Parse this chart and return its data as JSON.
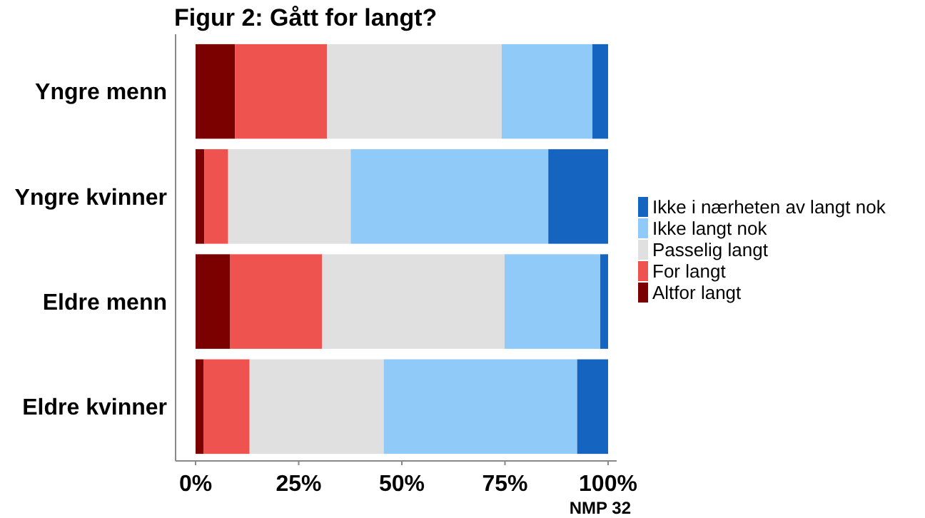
{
  "chart_data": {
    "type": "bar",
    "orientation": "horizontal",
    "stacked": true,
    "title": "Figur 2: Gått for langt?",
    "categories": [
      "Yngre menn",
      "Yngre kvinner",
      "Eldre menn",
      "Eldre kvinner"
    ],
    "series": [
      {
        "name": "Altfor langt",
        "color": "#7b0000",
        "values": [
          9.6,
          2.1,
          8.4,
          2.0
        ]
      },
      {
        "name": "For langt",
        "color": "#ef5350",
        "values": [
          22.3,
          5.8,
          22.3,
          11.1
        ]
      },
      {
        "name": "Passelig langt",
        "color": "#e0e0e0",
        "values": [
          42.3,
          29.7,
          44.2,
          32.5
        ]
      },
      {
        "name": "Ikke langt nok",
        "color": "#90caf9",
        "values": [
          22.0,
          47.9,
          23.2,
          46.9
        ]
      },
      {
        "name": "Ikke i nærheten av langt nok",
        "color": "#1565c0",
        "values": [
          3.8,
          14.5,
          1.9,
          7.5
        ]
      }
    ],
    "xlim": [
      0,
      100
    ],
    "xticks": [
      {
        "value": 0,
        "label": "0%"
      },
      {
        "value": 25,
        "label": "25%"
      },
      {
        "value": 50,
        "label": "50%"
      },
      {
        "value": 75,
        "label": "75%"
      },
      {
        "value": 100,
        "label": "100%"
      }
    ],
    "legend": "right",
    "grid": false,
    "annotations": [
      "NMP 32"
    ]
  }
}
